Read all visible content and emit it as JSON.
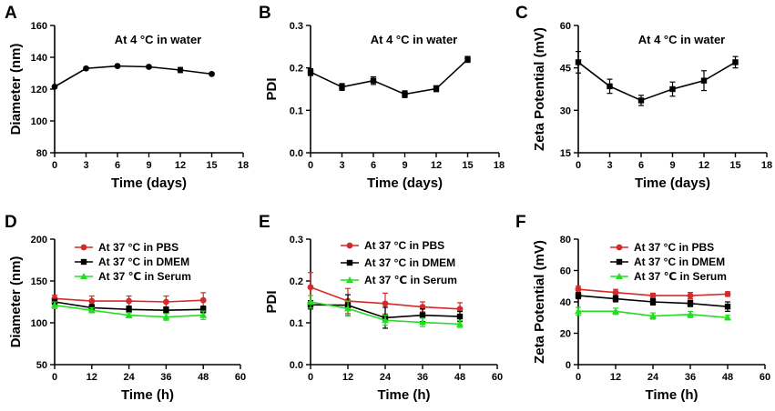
{
  "chart_data": [
    {
      "panel": "A",
      "type": "line",
      "annotation": "At 4 °C in water",
      "xlabel": "Time (days)",
      "ylabel": "Diameter (nm)",
      "xlim": [
        0,
        18
      ],
      "ylim": [
        80,
        160
      ],
      "xticks": [
        0,
        3,
        6,
        9,
        12,
        15,
        18
      ],
      "yticks": [
        80,
        100,
        120,
        140,
        160
      ],
      "legend": null,
      "series": [
        {
          "name": "At 4 °C in water",
          "color": "#000000",
          "marker": "circle",
          "x": [
            0,
            3,
            6,
            9,
            12,
            15
          ],
          "values": [
            121.5,
            133,
            134.5,
            134,
            132,
            129.5
          ],
          "error": [
            0.8,
            0.8,
            0.8,
            0.8,
            1.6,
            0.8
          ]
        }
      ]
    },
    {
      "panel": "B",
      "type": "line",
      "annotation": "At 4 °C in water",
      "xlabel": "Time (days)",
      "ylabel": "PDI",
      "xlim": [
        0,
        18
      ],
      "ylim": [
        0,
        0.3
      ],
      "xticks": [
        0,
        3,
        6,
        9,
        12,
        15,
        18
      ],
      "yticks": [
        0.0,
        0.1,
        0.2,
        0.3
      ],
      "legend": null,
      "series": [
        {
          "name": "At 4 °C in water",
          "color": "#000000",
          "marker": "square",
          "x": [
            0,
            3,
            6,
            9,
            12,
            15
          ],
          "values": [
            0.19,
            0.155,
            0.17,
            0.138,
            0.151,
            0.22
          ],
          "error": [
            0.008,
            0.008,
            0.009,
            0.008,
            0.007,
            0.007
          ]
        }
      ]
    },
    {
      "panel": "C",
      "type": "line",
      "annotation": "At 4 °C in water",
      "xlabel": "Time (days)",
      "ylabel": "Zeta Potential (mV)",
      "xlim": [
        0,
        18
      ],
      "ylim": [
        15,
        60
      ],
      "xticks": [
        0,
        3,
        6,
        9,
        12,
        15,
        18
      ],
      "yticks": [
        15,
        30,
        45,
        60
      ],
      "legend": null,
      "series": [
        {
          "name": "At 4 °C in water",
          "color": "#000000",
          "marker": "square",
          "x": [
            0,
            3,
            6,
            9,
            12,
            15
          ],
          "values": [
            47,
            38.5,
            33.5,
            37.5,
            40.5,
            47
          ],
          "error": [
            3.8,
            2.5,
            1.8,
            2.5,
            3.5,
            2.0
          ]
        }
      ]
    },
    {
      "panel": "D",
      "type": "line",
      "annotation": "",
      "xlabel": "Time (h)",
      "ylabel": "Diameter (nm)",
      "xlim": [
        0,
        60
      ],
      "ylim": [
        50,
        200
      ],
      "xticks": [
        0,
        12,
        24,
        36,
        48,
        60
      ],
      "yticks": [
        50,
        100,
        150,
        200
      ],
      "legend": {
        "position": "top"
      },
      "series": [
        {
          "name": "At 37 °C in PBS",
          "color": "#d42a2a",
          "marker": "circle",
          "x": [
            0,
            12,
            24,
            36,
            48
          ],
          "values": [
            129,
            126,
            126,
            125,
            127
          ],
          "error": [
            4,
            6,
            6,
            7,
            9
          ]
        },
        {
          "name": "At 37 °C in DMEM",
          "color": "#000000",
          "marker": "square",
          "x": [
            0,
            12,
            24,
            36,
            48
          ],
          "values": [
            125,
            118,
            116,
            115,
            116
          ],
          "error": [
            3,
            4,
            4,
            4,
            4
          ]
        },
        {
          "name": "At 37 ℃ in Serum",
          "color": "#22dd22",
          "marker": "triangle",
          "x": [
            0,
            12,
            24,
            36,
            48
          ],
          "values": [
            121,
            115,
            109,
            107,
            109
          ],
          "error": [
            4,
            3,
            3,
            4,
            5
          ]
        }
      ]
    },
    {
      "panel": "E",
      "type": "line",
      "annotation": "",
      "xlabel": "Time (h)",
      "ylabel": "PDI",
      "xlim": [
        0,
        60
      ],
      "ylim": [
        0,
        0.3
      ],
      "xticks": [
        0,
        12,
        24,
        36,
        48,
        60
      ],
      "yticks": [
        0.0,
        0.1,
        0.2,
        0.3
      ],
      "legend": {
        "position": "top-right"
      },
      "series": [
        {
          "name": "At 37 °C in PBS",
          "color": "#d42a2a",
          "marker": "circle",
          "x": [
            0,
            12,
            24,
            36,
            48
          ],
          "values": [
            0.185,
            0.152,
            0.146,
            0.138,
            0.133
          ],
          "error": [
            0.035,
            0.03,
            0.025,
            0.012,
            0.015
          ]
        },
        {
          "name": "At 37 °C in DMEM",
          "color": "#000000",
          "marker": "square",
          "x": [
            0,
            12,
            24,
            36,
            48
          ],
          "values": [
            0.143,
            0.142,
            0.112,
            0.118,
            0.115
          ],
          "error": [
            0.01,
            0.025,
            0.025,
            0.015,
            0.012
          ]
        },
        {
          "name": "At 37 ℃ in Serum",
          "color": "#22dd22",
          "marker": "triangle",
          "x": [
            0,
            12,
            24,
            36,
            48
          ],
          "values": [
            0.15,
            0.134,
            0.106,
            0.101,
            0.097
          ],
          "error": [
            0.015,
            0.018,
            0.012,
            0.01,
            0.008
          ]
        }
      ]
    },
    {
      "panel": "F",
      "type": "line",
      "annotation": "",
      "xlabel": "Time (h)",
      "ylabel": "Zeta Potential (mV)",
      "xlim": [
        0,
        60
      ],
      "ylim": [
        0,
        80
      ],
      "xticks": [
        0,
        12,
        24,
        36,
        48,
        60
      ],
      "yticks": [
        0,
        20,
        40,
        60,
        80
      ],
      "legend": {
        "position": "top-right"
      },
      "series": [
        {
          "name": "At 37 °C in PBS",
          "color": "#d42a2a",
          "marker": "circle",
          "x": [
            0,
            12,
            24,
            36,
            48
          ],
          "values": [
            48,
            46,
            44,
            44,
            45
          ],
          "error": [
            2,
            2,
            1.5,
            2,
            1.5
          ]
        },
        {
          "name": "At 37 °C in DMEM",
          "color": "#000000",
          "marker": "square",
          "x": [
            0,
            12,
            24,
            36,
            48
          ],
          "values": [
            44,
            42,
            40,
            39,
            37
          ],
          "error": [
            2,
            2,
            2,
            2,
            3
          ]
        },
        {
          "name": "At 37 ℃ in Serum",
          "color": "#22dd22",
          "marker": "triangle",
          "x": [
            0,
            12,
            24,
            36,
            48
          ],
          "values": [
            34,
            34,
            31,
            32,
            30
          ],
          "error": [
            2.5,
            2,
            2,
            2,
            1.5
          ]
        }
      ]
    }
  ]
}
